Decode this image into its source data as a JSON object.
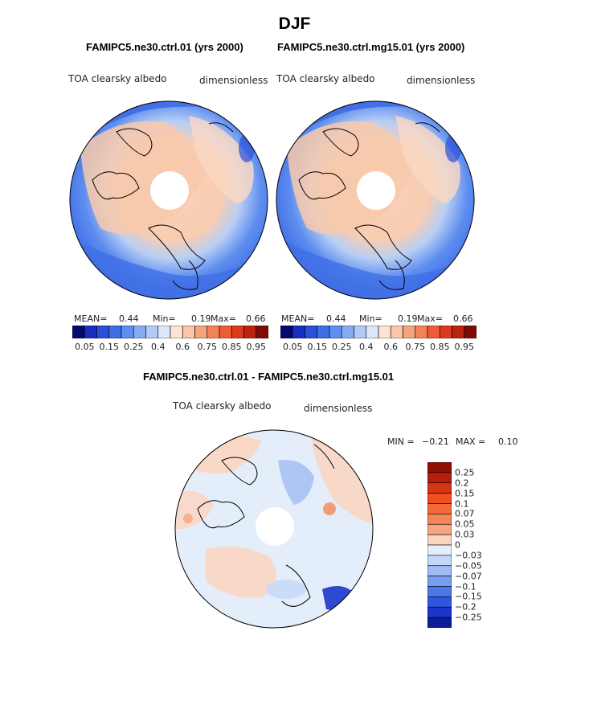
{
  "figure": {
    "season_title": "DJF",
    "colors": {
      "land_outline": "#000000",
      "polar_hole": "#ffffff"
    }
  },
  "panels": {
    "left": {
      "case_title": "FAMIPC5.ne30.ctrl.01 (yrs 2000)",
      "field_label": "TOA clearsky albedo",
      "units_label": "dimensionless",
      "stats": {
        "mean_label": "MEAN=",
        "mean": "0.44",
        "min_label": "Min=",
        "min": "0.19",
        "max_label": "Max=",
        "max": "0.66"
      }
    },
    "right": {
      "case_title": "FAMIPC5.ne30.ctrl.mg15.01 (yrs 2000)",
      "field_label": "TOA clearsky albedo",
      "units_label": "dimensionless",
      "stats": {
        "mean_label": "MEAN=",
        "mean": "0.44",
        "min_label": "Min=",
        "min": "0.19",
        "max_label": "Max=",
        "max": "0.66"
      }
    },
    "diff": {
      "case_title": "FAMIPC5.ne30.ctrl.01 - FAMIPC5.ne30.ctrl.mg15.01",
      "field_label": "TOA clearsky albedo",
      "units_label": "dimensionless",
      "stats": {
        "min_label": "MIN =",
        "min": "−0.21",
        "max_label": "MAX =",
        "max": "0.10"
      }
    }
  },
  "chart_data": [
    {
      "type": "heatmap",
      "projection": "north-polar-stereographic",
      "title": "FAMIPC5.ne30.ctrl.01 (yrs 2000)",
      "variable": "TOA clearsky albedo",
      "units": "dimensionless",
      "mean": 0.44,
      "min": 0.19,
      "max": 0.66,
      "colorbar": {
        "orientation": "horizontal",
        "tick_labels": [
          "0.05",
          "0.15",
          "0.25",
          "0.4",
          "0.6",
          "0.75",
          "0.85",
          "0.95"
        ],
        "colors": [
          "#08086e",
          "#1a2ebe",
          "#2a4fd8",
          "#3e6ee6",
          "#5f8ef0",
          "#88abf2",
          "#b4caf6",
          "#dde8fb",
          "#fde4d2",
          "#f9c6a6",
          "#f6a47e",
          "#f2825a",
          "#ec5d36",
          "#db3a1c",
          "#b82410",
          "#7e0b05"
        ]
      }
    },
    {
      "type": "heatmap",
      "projection": "north-polar-stereographic",
      "title": "FAMIPC5.ne30.ctrl.mg15.01 (yrs 2000)",
      "variable": "TOA clearsky albedo",
      "units": "dimensionless",
      "mean": 0.44,
      "min": 0.19,
      "max": 0.66,
      "colorbar": {
        "orientation": "horizontal",
        "tick_labels": [
          "0.05",
          "0.15",
          "0.25",
          "0.4",
          "0.6",
          "0.75",
          "0.85",
          "0.95"
        ],
        "colors": [
          "#08086e",
          "#1a2ebe",
          "#2a4fd8",
          "#3e6ee6",
          "#5f8ef0",
          "#88abf2",
          "#b4caf6",
          "#dde8fb",
          "#fde4d2",
          "#f9c6a6",
          "#f6a47e",
          "#f2825a",
          "#ec5d36",
          "#db3a1c",
          "#b82410",
          "#7e0b05"
        ]
      }
    },
    {
      "type": "heatmap",
      "projection": "north-polar-stereographic",
      "title": "FAMIPC5.ne30.ctrl.01 - FAMIPC5.ne30.ctrl.mg15.01",
      "variable": "TOA clearsky albedo",
      "units": "dimensionless",
      "min": -0.21,
      "max": 0.1,
      "colorbar": {
        "orientation": "vertical",
        "tick_labels": [
          "0.25",
          "0.2",
          "0.15",
          "0.1",
          "0.07",
          "0.05",
          "0.03",
          "0",
          "−0.03",
          "−0.05",
          "−0.07",
          "−0.1",
          "−0.15",
          "−0.2",
          "−0.25"
        ],
        "colors": [
          "#8e0d05",
          "#b51e0a",
          "#d63512",
          "#ee5022",
          "#f26a3a",
          "#f58659",
          "#f6a583",
          "#fbd5c0",
          "#e4eefb",
          "#c4d7f8",
          "#9fbcf3",
          "#789ef0",
          "#4d78ea",
          "#2f56e0",
          "#1c36cc",
          "#0f1c9a"
        ]
      }
    }
  ]
}
